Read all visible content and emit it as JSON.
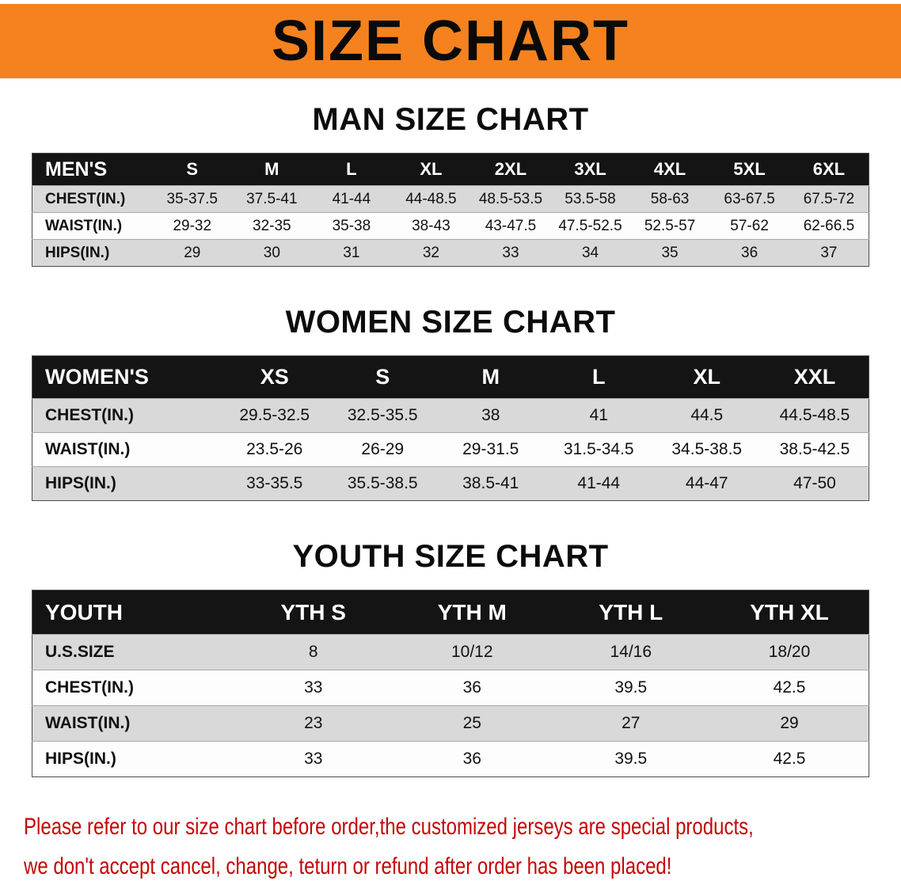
{
  "banner": {
    "title": "SIZE CHART"
  },
  "theme": {
    "banner_orange": "#f5821f",
    "header_black": "#141414",
    "row_gray": "#d9d9d9",
    "row_white": "#fdfdfd",
    "alert_red": "#c40505"
  },
  "sections": [
    {
      "id": "men",
      "heading": "MAN SIZE CHART",
      "table": {
        "header": [
          "MEN'S",
          "S",
          "M",
          "L",
          "XL",
          "2XL",
          "3XL",
          "4XL",
          "5XL",
          "6XL"
        ],
        "rows": [
          [
            "CHEST(IN.)",
            "35-37.5",
            "37.5-41",
            "41-44",
            "44-48.5",
            "48.5-53.5",
            "53.5-58",
            "58-63",
            "63-67.5",
            "67.5-72"
          ],
          [
            "WAIST(IN.)",
            "29-32",
            "32-35",
            "35-38",
            "38-43",
            "43-47.5",
            "47.5-52.5",
            "52.5-57",
            "57-62",
            "62-66.5"
          ],
          [
            "HIPS(IN.)",
            "29",
            "30",
            "31",
            "32",
            "33",
            "34",
            "35",
            "36",
            "37"
          ]
        ]
      }
    },
    {
      "id": "women",
      "heading": "WOMEN SIZE CHART",
      "table": {
        "header": [
          "WOMEN'S",
          "XS",
          "S",
          "M",
          "L",
          "XL",
          "XXL"
        ],
        "rows": [
          [
            "CHEST(IN.)",
            "29.5-32.5",
            "32.5-35.5",
            "38",
            "41",
            "44.5",
            "44.5-48.5"
          ],
          [
            "WAIST(IN.)",
            "23.5-26",
            "26-29",
            "29-31.5",
            "31.5-34.5",
            "34.5-38.5",
            "38.5-42.5"
          ],
          [
            "HIPS(IN.)",
            "33-35.5",
            "35.5-38.5",
            "38.5-41",
            "41-44",
            "44-47",
            "47-50"
          ]
        ]
      }
    },
    {
      "id": "youth",
      "heading": "YOUTH SIZE CHART",
      "table": {
        "header": [
          "YOUTH",
          "YTH S",
          "YTH M",
          "YTH L",
          "YTH XL"
        ],
        "rows": [
          [
            "U.S.SIZE",
            "8",
            "10/12",
            "14/16",
            "18/20"
          ],
          [
            "CHEST(IN.)",
            "33",
            "36",
            "39.5",
            "42.5"
          ],
          [
            "WAIST(IN.)",
            "23",
            "25",
            "27",
            "29"
          ],
          [
            "HIPS(IN.)",
            "33",
            "36",
            "39.5",
            "42.5"
          ]
        ]
      }
    }
  ],
  "disclaimer": {
    "line1": "Please refer to our size chart before order,the customized jerseys are special products,",
    "line2": "we don't accept cancel, change, teturn or refund after order has been placed!"
  }
}
